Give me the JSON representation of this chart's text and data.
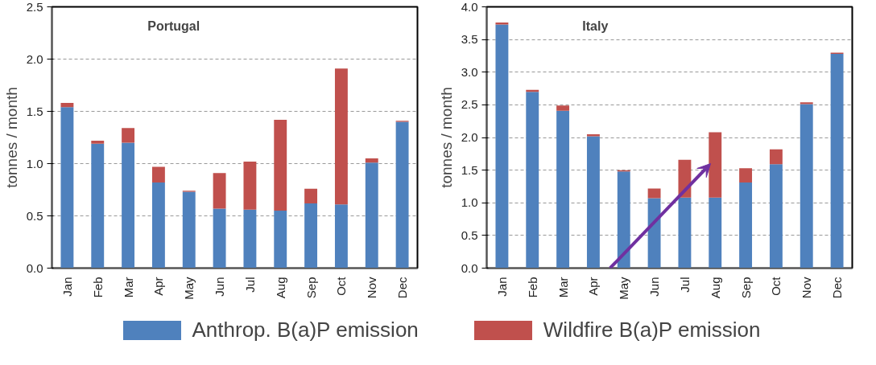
{
  "chart_data": [
    {
      "type": "bar",
      "stacked": true,
      "title": "Portugal",
      "ylabel": "tonnes / month",
      "categories": [
        "Jan",
        "Feb",
        "Mar",
        "Apr",
        "May",
        "Jun",
        "Jul",
        "Aug",
        "Sep",
        "Oct",
        "Nov",
        "Dec"
      ],
      "series": [
        {
          "name": "Anthrop. B(a)P emission",
          "color": "#4f81bd",
          "values": [
            1.54,
            1.19,
            1.2,
            0.82,
            0.73,
            0.57,
            0.56,
            0.55,
            0.62,
            0.61,
            1.01,
            1.4
          ]
        },
        {
          "name": "Wildfire B(a)P emission",
          "color": "#c0504d",
          "values": [
            0.04,
            0.03,
            0.14,
            0.15,
            0.01,
            0.34,
            0.46,
            0.87,
            0.14,
            1.3,
            0.04,
            0.01
          ]
        }
      ],
      "ylim": [
        0,
        2.5
      ],
      "yticks": [
        {
          "value": 0,
          "label": "0.0"
        },
        {
          "value": 0.5,
          "label": "0.5"
        },
        {
          "value": 1,
          "label": "1.0"
        },
        {
          "value": 1.5,
          "label": "1.5"
        },
        {
          "value": 2,
          "label": "2.0"
        },
        {
          "value": 2.5,
          "label": "2.5"
        }
      ],
      "grid": "y",
      "legend": "bottom"
    },
    {
      "type": "bar",
      "stacked": true,
      "title": "Italy",
      "ylabel": "tonnes / month",
      "categories": [
        "Jan",
        "Feb",
        "Mar",
        "Apr",
        "May",
        "Jun",
        "Jul",
        "Aug",
        "Sep",
        "Oct",
        "Nov",
        "Dec"
      ],
      "series": [
        {
          "color": "#4f81bd",
          "values": [
            3.73,
            2.7,
            2.41,
            2.02,
            1.48,
            1.07,
            1.08,
            1.08,
            1.31,
            1.59,
            2.51,
            3.28
          ]
        },
        {
          "color": "#c0504d",
          "values": [
            0.03,
            0.03,
            0.08,
            0.03,
            0.02,
            0.15,
            0.58,
            1.0,
            0.22,
            0.23,
            0.03,
            0.02
          ]
        }
      ],
      "ylim": [
        0,
        4
      ],
      "yticks": [
        {
          "value": 0,
          "label": "0.0"
        },
        {
          "value": 0.5,
          "label": "0.5"
        },
        {
          "value": 1,
          "label": "1.0"
        },
        {
          "value": 1.5,
          "label": "1.5"
        },
        {
          "value": 2,
          "label": "2.0"
        },
        {
          "value": 2.5,
          "label": "2.5"
        },
        {
          "value": 3,
          "label": "3.0"
        },
        {
          "value": 3.5,
          "label": "3.5"
        },
        {
          "value": 4,
          "label": "4.0"
        }
      ],
      "grid": "y"
    }
  ]
}
